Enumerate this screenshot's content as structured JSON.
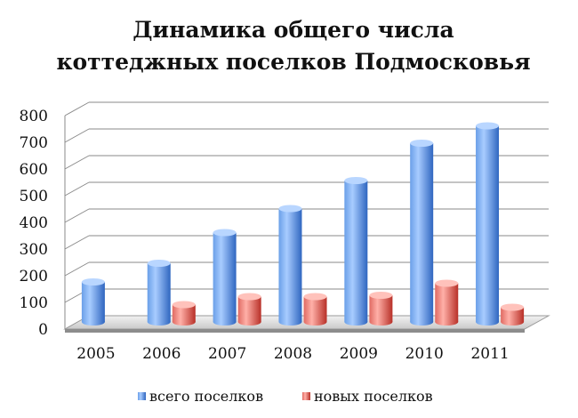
{
  "chart_data": {
    "type": "bar",
    "title_line1": "Динамика общего числа",
    "title_line2": "коттеджных поселков Подмосковья",
    "categories": [
      "2005",
      "2006",
      "2007",
      "2008",
      "2009",
      "2010",
      "2011"
    ],
    "series": [
      {
        "name": "всего поселков",
        "values": [
          150,
          220,
          335,
          425,
          530,
          670,
          735
        ]
      },
      {
        "name": "новых поселков",
        "values": [
          0,
          65,
          95,
          95,
          100,
          145,
          55
        ]
      }
    ],
    "ylim": [
      0,
      800
    ],
    "yticks": [
      "0",
      "100",
      "200",
      "300",
      "400",
      "500",
      "600",
      "700",
      "800"
    ],
    "grid": true,
    "legend_position": "bottom"
  },
  "colors": {
    "series_1": "#4f86d9",
    "series_2": "#e0534b"
  }
}
